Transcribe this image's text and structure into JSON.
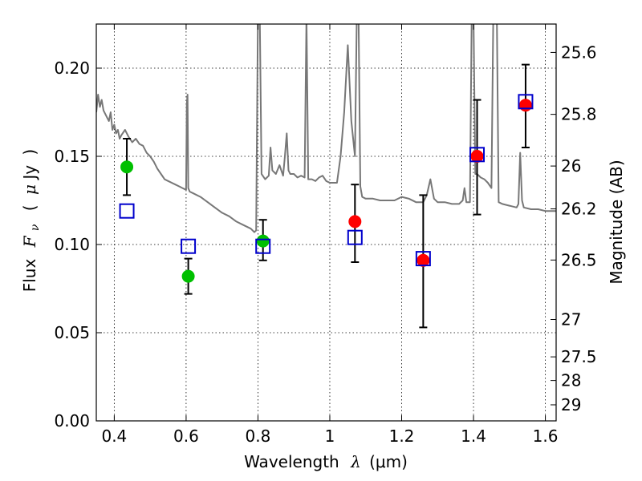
{
  "chart_data": {
    "type": "scatter",
    "xlabel": "Wavelength λ (μm)",
    "xlabel_parts": {
      "main": "Wavelength",
      "symbol": "λ",
      "unit": "(μm)"
    },
    "ylabel": "Flux Fν (μJy)",
    "ylabel_parts": {
      "main": "Flux",
      "symbol": "F",
      "sub": "ν",
      "unit_open": "(",
      "unit_mu": "μ",
      "unit_rest": "Jy",
      "unit_close": ")"
    },
    "y2label": "Magnitude (AB)",
    "xlim": [
      0.35,
      1.63
    ],
    "ylim": [
      0.0,
      0.225
    ],
    "grid": true,
    "x_ticks": [
      0.4,
      0.6,
      0.8,
      1.0,
      1.2,
      1.4,
      1.6
    ],
    "x_tick_labels": [
      "0.4",
      "0.6",
      "0.8",
      "1",
      "1.2",
      "1.4",
      "1.6"
    ],
    "y_ticks": [
      0.0,
      0.05,
      0.1,
      0.15,
      0.2
    ],
    "y_tick_labels": [
      "0.00",
      "0.05",
      "0.10",
      "0.15",
      "0.20"
    ],
    "y2_ticks": [
      {
        "label": "25.6",
        "flux": 0.2089
      },
      {
        "label": "25.8",
        "flux": 0.1738
      },
      {
        "label": "26",
        "flux": 0.1445
      },
      {
        "label": "26.2",
        "flux": 0.1202
      },
      {
        "label": "26.5",
        "flux": 0.0912
      },
      {
        "label": "27",
        "flux": 0.0575
      },
      {
        "label": "27.5",
        "flux": 0.0363
      },
      {
        "label": "28",
        "flux": 0.0229
      },
      {
        "label": "29",
        "flux": 0.0091
      }
    ],
    "series": [
      {
        "marker": "circle",
        "color": "#00c000",
        "points": [
          {
            "x": 0.435,
            "y": 0.144,
            "err_low": 0.128,
            "err_high": 0.16
          },
          {
            "x": 0.606,
            "y": 0.082,
            "err_low": 0.072,
            "err_high": 0.092
          },
          {
            "x": 0.814,
            "y": 0.102,
            "err_low": 0.091,
            "err_high": 0.114
          }
        ]
      },
      {
        "marker": "circle",
        "color": "#ff0000",
        "points": [
          {
            "x": 1.07,
            "y": 0.113,
            "err_low": 0.09,
            "err_high": 0.134
          },
          {
            "x": 1.26,
            "y": 0.091,
            "err_low": 0.053,
            "err_high": 0.128
          },
          {
            "x": 1.41,
            "y": 0.15,
            "err_low": 0.117,
            "err_high": 0.182
          },
          {
            "x": 1.545,
            "y": 0.179,
            "err_low": 0.155,
            "err_high": 0.202
          }
        ]
      },
      {
        "marker": "open-square",
        "color": "#0000cc",
        "points": [
          {
            "x": 0.435,
            "y": 0.119
          },
          {
            "x": 0.606,
            "y": 0.099
          },
          {
            "x": 0.814,
            "y": 0.099
          },
          {
            "x": 1.07,
            "y": 0.104
          },
          {
            "x": 1.26,
            "y": 0.092
          },
          {
            "x": 1.41,
            "y": 0.151
          },
          {
            "x": 1.545,
            "y": 0.181
          }
        ]
      }
    ],
    "template_spectrum": {
      "color": "#777777",
      "points": [
        [
          0.35,
          0.175
        ],
        [
          0.355,
          0.185
        ],
        [
          0.36,
          0.178
        ],
        [
          0.365,
          0.182
        ],
        [
          0.37,
          0.176
        ],
        [
          0.375,
          0.174
        ],
        [
          0.38,
          0.172
        ],
        [
          0.385,
          0.17
        ],
        [
          0.39,
          0.175
        ],
        [
          0.395,
          0.165
        ],
        [
          0.4,
          0.168
        ],
        [
          0.405,
          0.163
        ],
        [
          0.41,
          0.165
        ],
        [
          0.415,
          0.16
        ],
        [
          0.42,
          0.162
        ],
        [
          0.43,
          0.165
        ],
        [
          0.44,
          0.161
        ],
        [
          0.45,
          0.158
        ],
        [
          0.46,
          0.16
        ],
        [
          0.47,
          0.157
        ],
        [
          0.48,
          0.156
        ],
        [
          0.49,
          0.152
        ],
        [
          0.5,
          0.15
        ],
        [
          0.51,
          0.147
        ],
        [
          0.52,
          0.143
        ],
        [
          0.53,
          0.14
        ],
        [
          0.54,
          0.137
        ],
        [
          0.55,
          0.136
        ],
        [
          0.56,
          0.135
        ],
        [
          0.57,
          0.134
        ],
        [
          0.58,
          0.133
        ],
        [
          0.59,
          0.132
        ],
        [
          0.6,
          0.131
        ],
        [
          0.602,
          0.18
        ],
        [
          0.604,
          0.185
        ],
        [
          0.606,
          0.132
        ],
        [
          0.61,
          0.13
        ],
        [
          0.62,
          0.129
        ],
        [
          0.64,
          0.127
        ],
        [
          0.66,
          0.124
        ],
        [
          0.68,
          0.121
        ],
        [
          0.7,
          0.118
        ],
        [
          0.72,
          0.116
        ],
        [
          0.74,
          0.113
        ],
        [
          0.76,
          0.111
        ],
        [
          0.78,
          0.109
        ],
        [
          0.79,
          0.107
        ],
        [
          0.795,
          0.108
        ],
        [
          0.8,
          0.23
        ],
        [
          0.805,
          0.23
        ],
        [
          0.81,
          0.14
        ],
        [
          0.82,
          0.137
        ],
        [
          0.83,
          0.139
        ],
        [
          0.835,
          0.155
        ],
        [
          0.84,
          0.142
        ],
        [
          0.85,
          0.14
        ],
        [
          0.86,
          0.145
        ],
        [
          0.87,
          0.139
        ],
        [
          0.875,
          0.15
        ],
        [
          0.88,
          0.163
        ],
        [
          0.885,
          0.142
        ],
        [
          0.89,
          0.14
        ],
        [
          0.9,
          0.14
        ],
        [
          0.91,
          0.138
        ],
        [
          0.92,
          0.139
        ],
        [
          0.93,
          0.138
        ],
        [
          0.935,
          0.23
        ],
        [
          0.94,
          0.137
        ],
        [
          0.95,
          0.137
        ],
        [
          0.96,
          0.136
        ],
        [
          0.97,
          0.138
        ],
        [
          0.98,
          0.139
        ],
        [
          0.99,
          0.136
        ],
        [
          1.0,
          0.135
        ],
        [
          1.02,
          0.135
        ],
        [
          1.03,
          0.15
        ],
        [
          1.04,
          0.175
        ],
        [
          1.05,
          0.213
        ],
        [
          1.06,
          0.17
        ],
        [
          1.07,
          0.15
        ],
        [
          1.075,
          0.23
        ],
        [
          1.08,
          0.23
        ],
        [
          1.085,
          0.133
        ],
        [
          1.09,
          0.127
        ],
        [
          1.1,
          0.126
        ],
        [
          1.12,
          0.126
        ],
        [
          1.14,
          0.125
        ],
        [
          1.16,
          0.125
        ],
        [
          1.18,
          0.125
        ],
        [
          1.2,
          0.127
        ],
        [
          1.22,
          0.126
        ],
        [
          1.24,
          0.124
        ],
        [
          1.26,
          0.124
        ],
        [
          1.27,
          0.128
        ],
        [
          1.28,
          0.137
        ],
        [
          1.29,
          0.126
        ],
        [
          1.3,
          0.124
        ],
        [
          1.32,
          0.124
        ],
        [
          1.34,
          0.123
        ],
        [
          1.36,
          0.123
        ],
        [
          1.37,
          0.125
        ],
        [
          1.375,
          0.132
        ],
        [
          1.38,
          0.124
        ],
        [
          1.39,
          0.124
        ],
        [
          1.395,
          0.23
        ],
        [
          1.4,
          0.23
        ],
        [
          1.405,
          0.14
        ],
        [
          1.41,
          0.14
        ],
        [
          1.42,
          0.138
        ],
        [
          1.43,
          0.137
        ],
        [
          1.44,
          0.135
        ],
        [
          1.45,
          0.132
        ],
        [
          1.455,
          0.23
        ],
        [
          1.465,
          0.23
        ],
        [
          1.47,
          0.124
        ],
        [
          1.48,
          0.123
        ],
        [
          1.5,
          0.122
        ],
        [
          1.52,
          0.121
        ],
        [
          1.525,
          0.123
        ],
        [
          1.53,
          0.152
        ],
        [
          1.535,
          0.125
        ],
        [
          1.54,
          0.121
        ],
        [
          1.56,
          0.12
        ],
        [
          1.58,
          0.12
        ],
        [
          1.6,
          0.119
        ],
        [
          1.62,
          0.119
        ],
        [
          1.63,
          0.119
        ]
      ]
    }
  }
}
